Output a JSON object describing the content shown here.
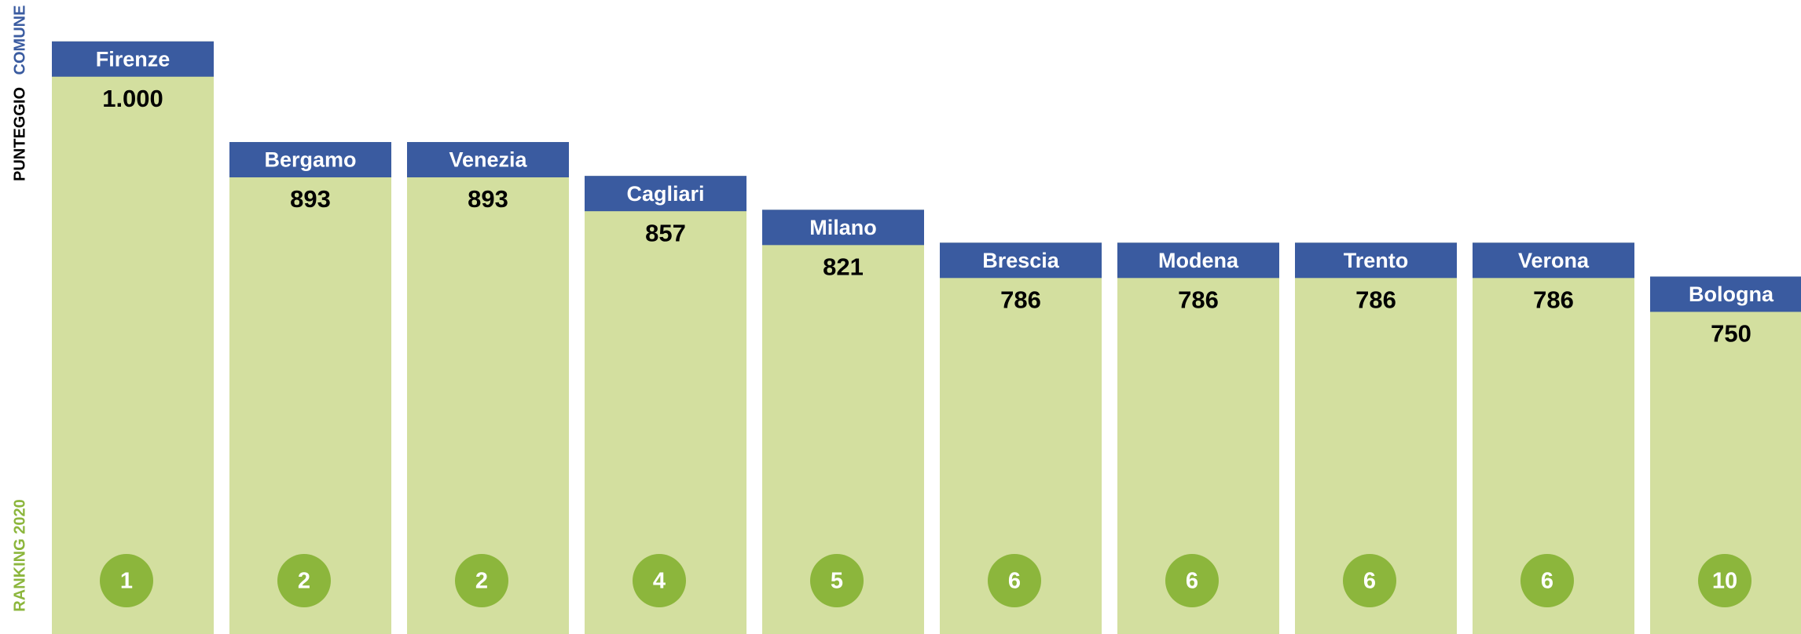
{
  "chart_data": {
    "type": "bar",
    "side_labels": [
      "COMUNE",
      "PUNTEGGIO",
      "RANKING 2020"
    ],
    "categories": [
      "Firenze",
      "Bergamo",
      "Venezia",
      "Cagliari",
      "Milano",
      "Brescia",
      "Modena",
      "Trento",
      "Verona",
      "Bologna"
    ],
    "values": [
      1000,
      893,
      893,
      857,
      821,
      786,
      786,
      786,
      786,
      750
    ],
    "value_labels": [
      "1.000",
      "893",
      "893",
      "857",
      "821",
      "786",
      "786",
      "786",
      "786",
      "750"
    ],
    "ranks": [
      "1",
      "2",
      "2",
      "4",
      "5",
      "6",
      "6",
      "6",
      "6",
      "10"
    ],
    "color": "#d3df9f",
    "header_color": "#3a5ba0",
    "rank_color": "#8cb63c",
    "ylim": [
      370,
      1044
    ]
  }
}
